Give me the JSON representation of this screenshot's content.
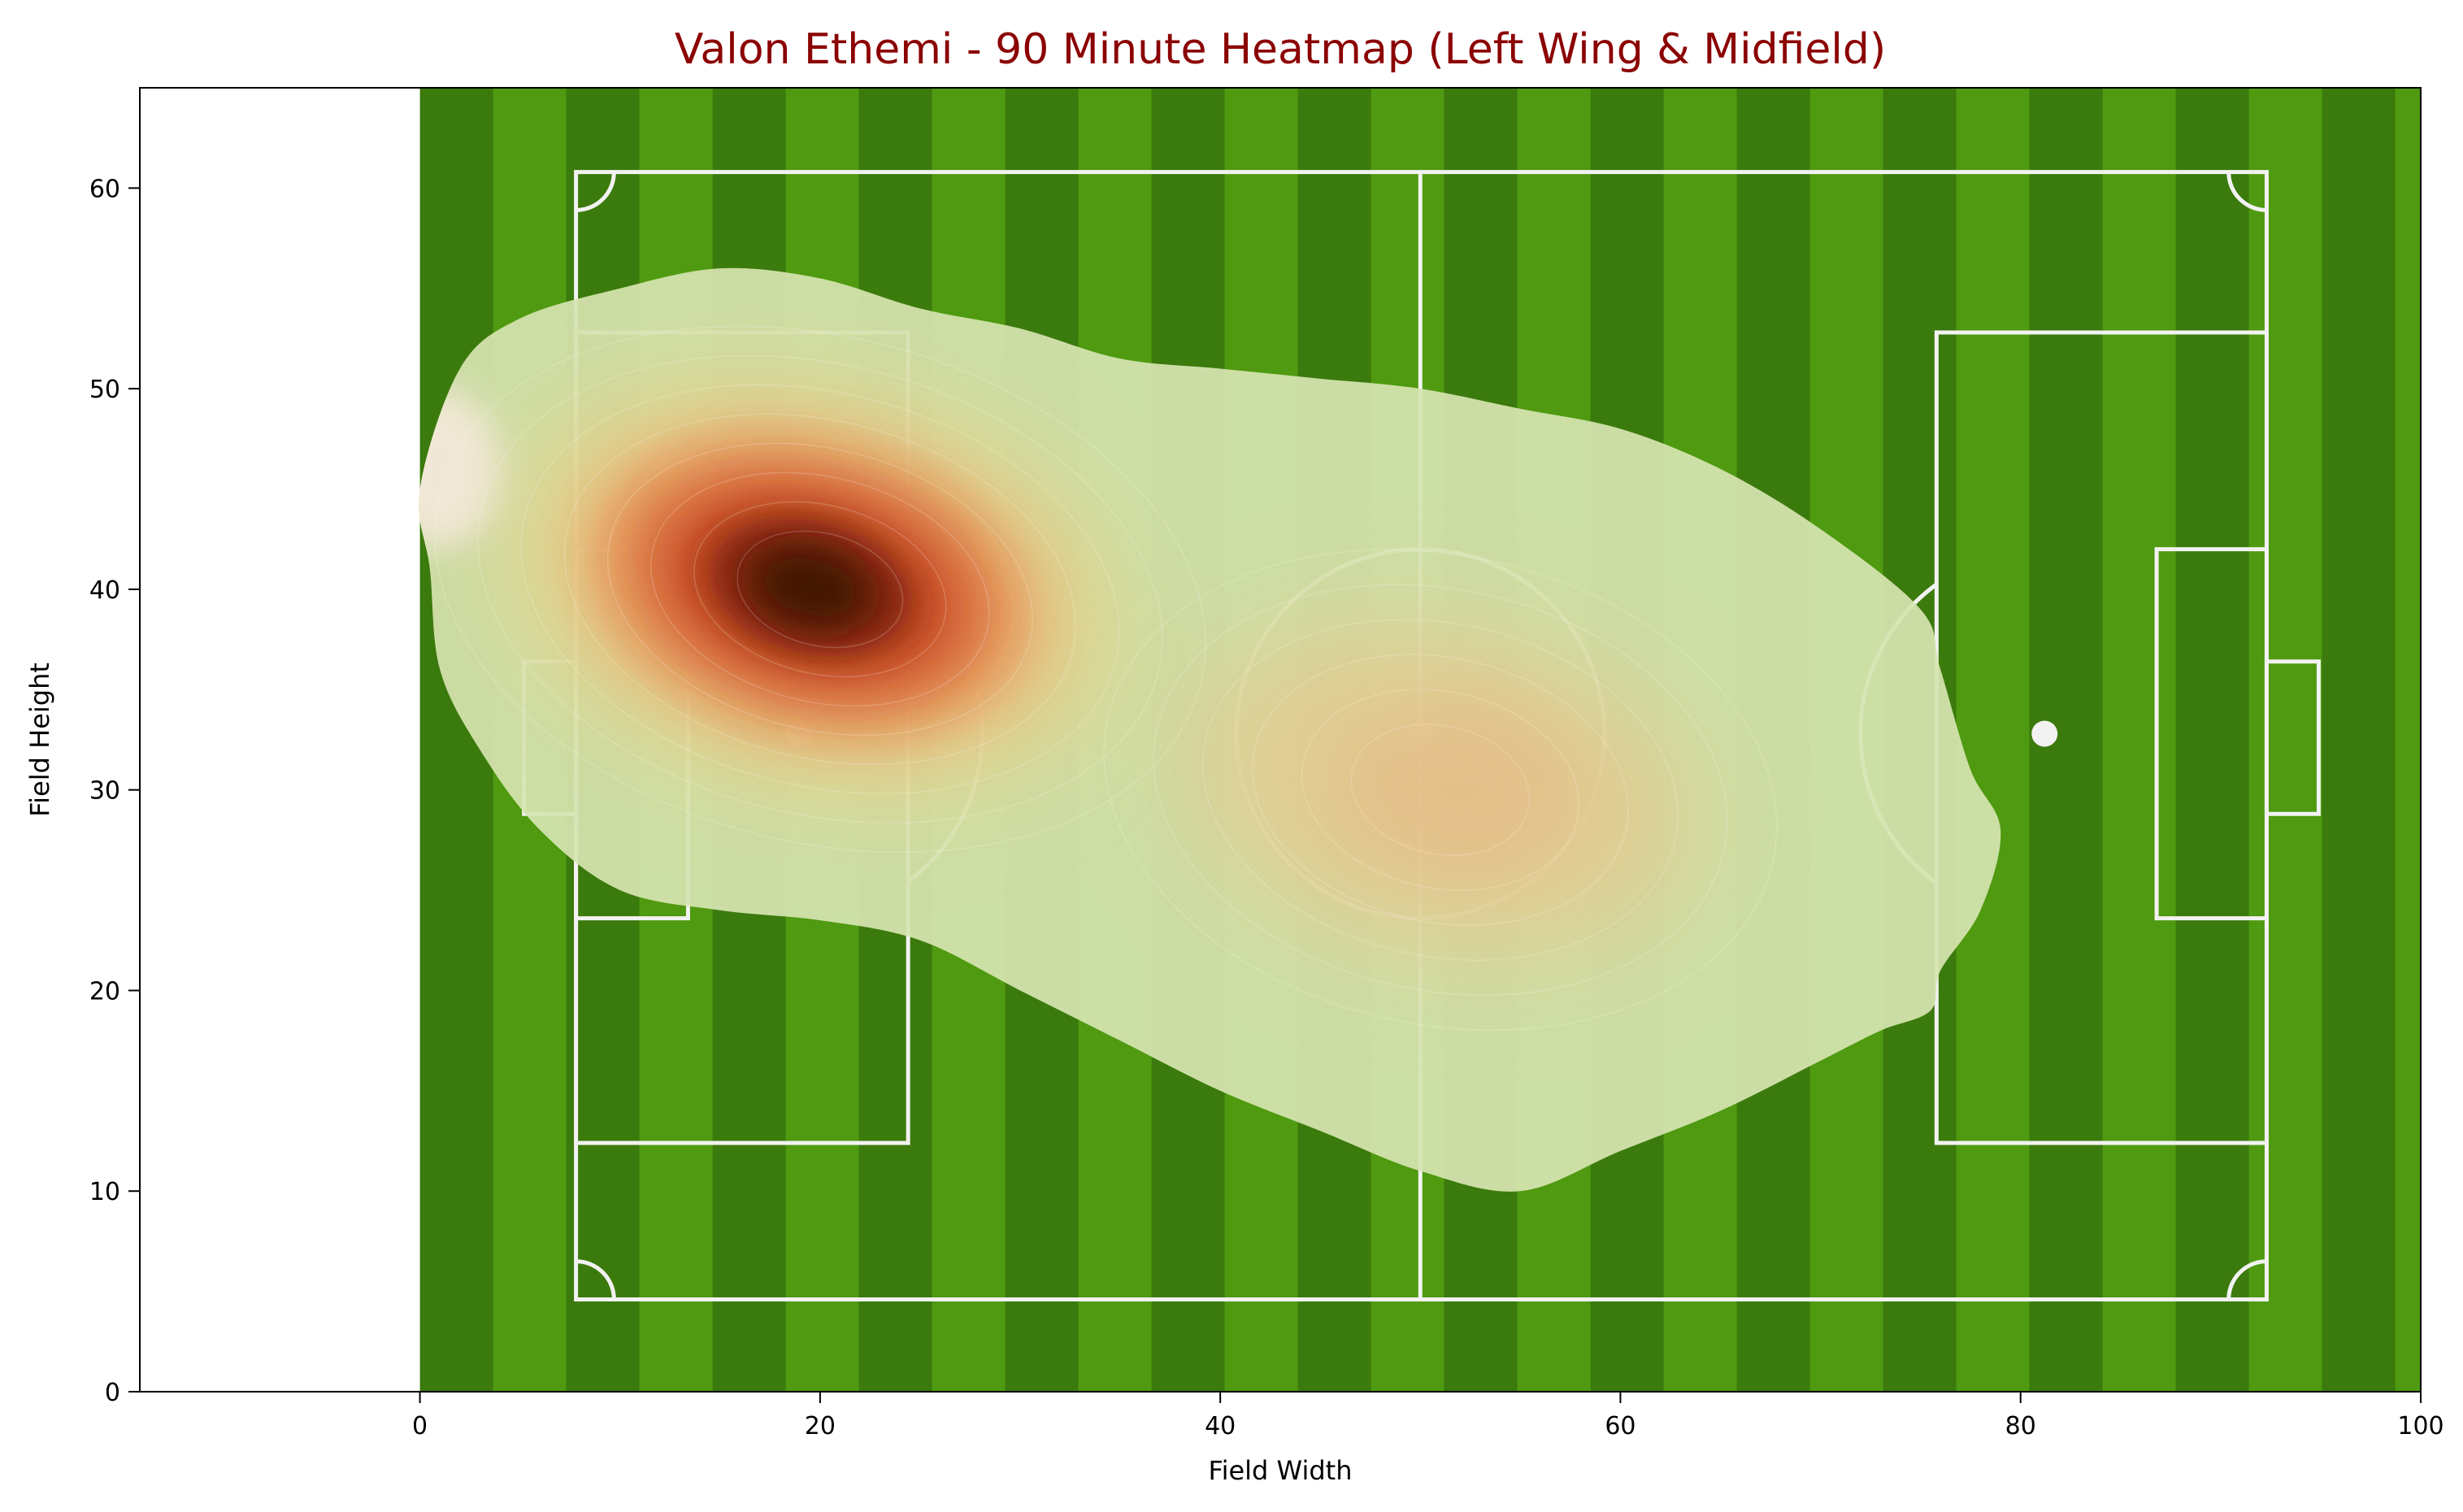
{
  "chart_data": {
    "type": "heatmap",
    "title": "Valon Ethemi - 90 Minute Heatmap (Left Wing & Midfield)",
    "xlabel": "Field Width",
    "ylabel": "Field Height",
    "xlim": [
      -14,
      100
    ],
    "ylim": [
      0,
      65
    ],
    "x_ticks": [
      0,
      20,
      40,
      60,
      80,
      100
    ],
    "y_ticks": [
      0,
      10,
      20,
      30,
      40,
      50,
      60
    ],
    "grid": false,
    "legend": "none",
    "background_image": "football-pitch",
    "pitch_extent": {
      "x": [
        0,
        100
      ],
      "y": [
        0,
        65
      ]
    },
    "colormap": [
      "#d6e4b0",
      "#f1c87e",
      "#e6834e",
      "#c1401c",
      "#7a2010",
      "#3c1606"
    ],
    "density_hotspots": [
      {
        "x": 20,
        "y": 40,
        "intensity": 1.0
      },
      {
        "x": 51,
        "y": 30,
        "intensity": 0.35
      }
    ],
    "density_outline": [
      [
        0.5,
        41
      ],
      [
        0,
        45
      ],
      [
        2,
        51
      ],
      [
        5,
        53.5
      ],
      [
        10,
        55
      ],
      [
        15,
        56
      ],
      [
        20,
        55.5
      ],
      [
        25,
        54
      ],
      [
        30,
        53
      ],
      [
        35,
        51.5
      ],
      [
        40,
        51
      ],
      [
        45,
        50.5
      ],
      [
        50,
        50
      ],
      [
        55,
        49
      ],
      [
        60,
        48
      ],
      [
        65,
        46
      ],
      [
        70,
        43
      ],
      [
        75,
        39
      ],
      [
        76,
        36
      ],
      [
        77.5,
        31
      ],
      [
        79,
        28
      ],
      [
        78,
        24
      ],
      [
        76,
        21
      ],
      [
        75.5,
        19
      ],
      [
        73,
        18
      ],
      [
        70,
        16.5
      ],
      [
        65,
        14
      ],
      [
        60,
        12
      ],
      [
        55,
        10
      ],
      [
        50,
        11
      ],
      [
        45,
        13
      ],
      [
        40,
        15
      ],
      [
        35,
        17.5
      ],
      [
        30,
        20
      ],
      [
        25,
        22.5
      ],
      [
        20,
        23.5
      ],
      [
        15,
        24
      ],
      [
        10,
        25
      ],
      [
        6,
        28
      ],
      [
        3,
        32
      ],
      [
        1,
        36
      ]
    ],
    "title_color": "#8b0000"
  }
}
